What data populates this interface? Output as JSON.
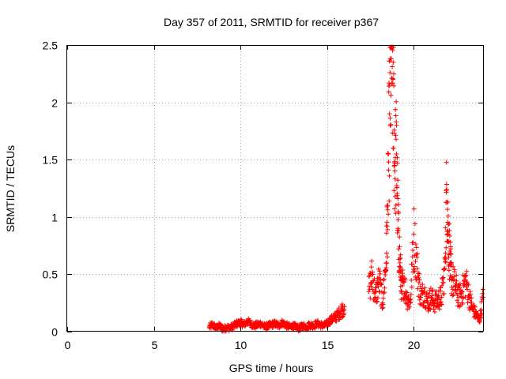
{
  "chart_data": {
    "type": "scatter",
    "title": "Day 357 of 2011, SRMTID for receiver p367",
    "xlabel": "GPS time / hours",
    "ylabel": "SRMTID / TECUs",
    "xlim": [
      0,
      24
    ],
    "ylim": [
      0,
      2.5
    ],
    "xticks": [
      0,
      5,
      10,
      15,
      20
    ],
    "xtick_labels": [
      "0",
      "5",
      "10",
      "15",
      "20"
    ],
    "yticks": [
      0,
      0.5,
      1,
      1.5,
      2,
      2.5
    ],
    "ytick_labels": [
      "0",
      "0.5",
      "1",
      "1.5",
      "2",
      "2.5"
    ],
    "grid": true,
    "marker": "+",
    "series": [
      {
        "name": "SRMTID",
        "color": "#ff0000",
        "segments": [
          {
            "x": [
              8.2,
              8.4,
              8.6,
              8.8,
              9.0,
              9.2,
              9.4,
              9.6,
              9.8,
              10.0,
              10.2,
              10.4,
              10.6,
              10.8,
              11.0,
              11.2,
              11.4,
              11.6,
              11.8,
              12.0,
              12.2,
              12.4,
              12.6,
              12.8,
              13.0,
              13.2,
              13.4,
              13.6,
              13.8,
              14.0,
              14.2,
              14.4,
              14.6,
              14.8,
              15.0,
              15.2,
              15.4,
              15.6,
              15.8,
              16.0
            ],
            "y": [
              0.04,
              0.06,
              0.03,
              0.05,
              0.02,
              0.04,
              0.03,
              0.05,
              0.07,
              0.08,
              0.06,
              0.09,
              0.07,
              0.05,
              0.06,
              0.07,
              0.04,
              0.05,
              0.06,
              0.07,
              0.05,
              0.08,
              0.06,
              0.04,
              0.05,
              0.04,
              0.03,
              0.05,
              0.04,
              0.06,
              0.05,
              0.07,
              0.06,
              0.05,
              0.07,
              0.1,
              0.12,
              0.14,
              0.18,
              0.22
            ]
          },
          {
            "x": [
              17.4,
              17.6,
              17.8,
              18.0,
              18.2,
              18.4,
              18.5,
              18.6,
              18.7,
              18.8,
              18.9,
              19.0,
              19.1,
              19.2,
              19.3,
              19.4,
              19.6,
              19.8,
              20.0,
              20.2,
              20.4,
              20.6,
              20.8,
              21.0,
              21.2,
              21.4,
              21.6,
              21.8,
              21.9,
              22.0,
              22.1,
              22.2,
              22.4,
              22.6,
              22.8,
              23.0,
              23.2,
              23.4,
              23.6,
              23.8,
              24.0
            ],
            "y": [
              0.35,
              0.5,
              0.3,
              0.45,
              0.25,
              0.6,
              1.1,
              1.9,
              2.38,
              2.2,
              1.45,
              1.55,
              0.9,
              0.6,
              0.35,
              0.45,
              0.3,
              0.25,
              0.85,
              0.55,
              0.3,
              0.35,
              0.25,
              0.3,
              0.25,
              0.28,
              0.3,
              0.55,
              1.24,
              0.85,
              0.6,
              0.45,
              0.4,
              0.3,
              0.35,
              0.45,
              0.3,
              0.2,
              0.15,
              0.1,
              0.3
            ]
          }
        ]
      }
    ]
  }
}
